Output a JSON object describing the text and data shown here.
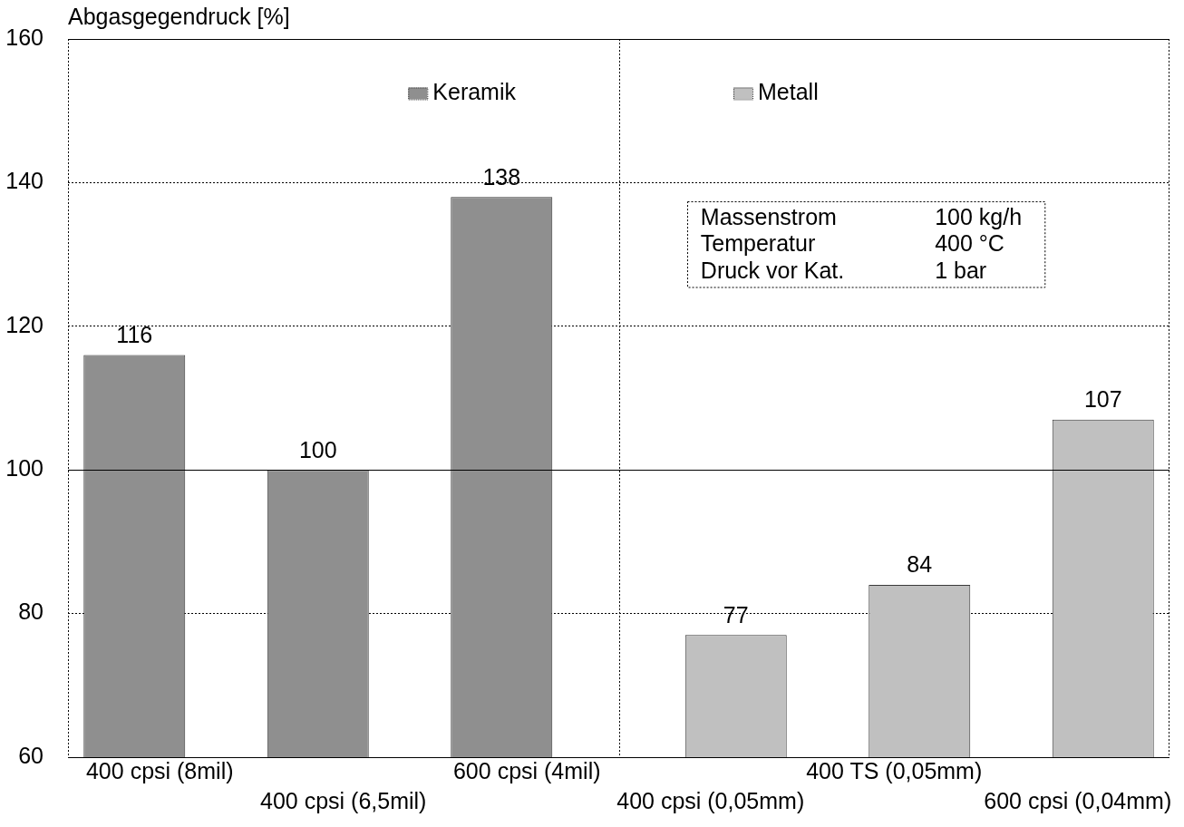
{
  "chart_data": {
    "type": "bar",
    "ylabel": "Abgasgegendruck [%]",
    "categories": [
      "400 cpsi (8mil)",
      "400 cpsi (6,5mil)",
      "600 cpsi (4mil)",
      "400 cpsi (0,05mm)",
      "400 TS (0,05mm)",
      "600 cpsi (0,04mm)"
    ],
    "series": [
      {
        "name": "Keramik",
        "color": "#8f8f8f",
        "values": [
          116,
          100,
          138,
          null,
          null,
          null
        ]
      },
      {
        "name": "Metall",
        "color": "#c0c0c0",
        "values": [
          null,
          null,
          null,
          77,
          84,
          107
        ]
      }
    ],
    "ylim": [
      60,
      160
    ],
    "yticks": [
      60,
      80,
      100,
      120,
      140,
      160
    ],
    "grid": "y",
    "legend": "top",
    "data_labels": true,
    "ref_lines": [
      {
        "axis": "y",
        "value": 100,
        "color": "#000000",
        "line_style": "solid"
      }
    ],
    "annotations": [
      "Massenstrom",
      "100 kg/h",
      "Temperatur",
      "400 °C",
      "Druck vor Kat.",
      "1 bar"
    ]
  }
}
